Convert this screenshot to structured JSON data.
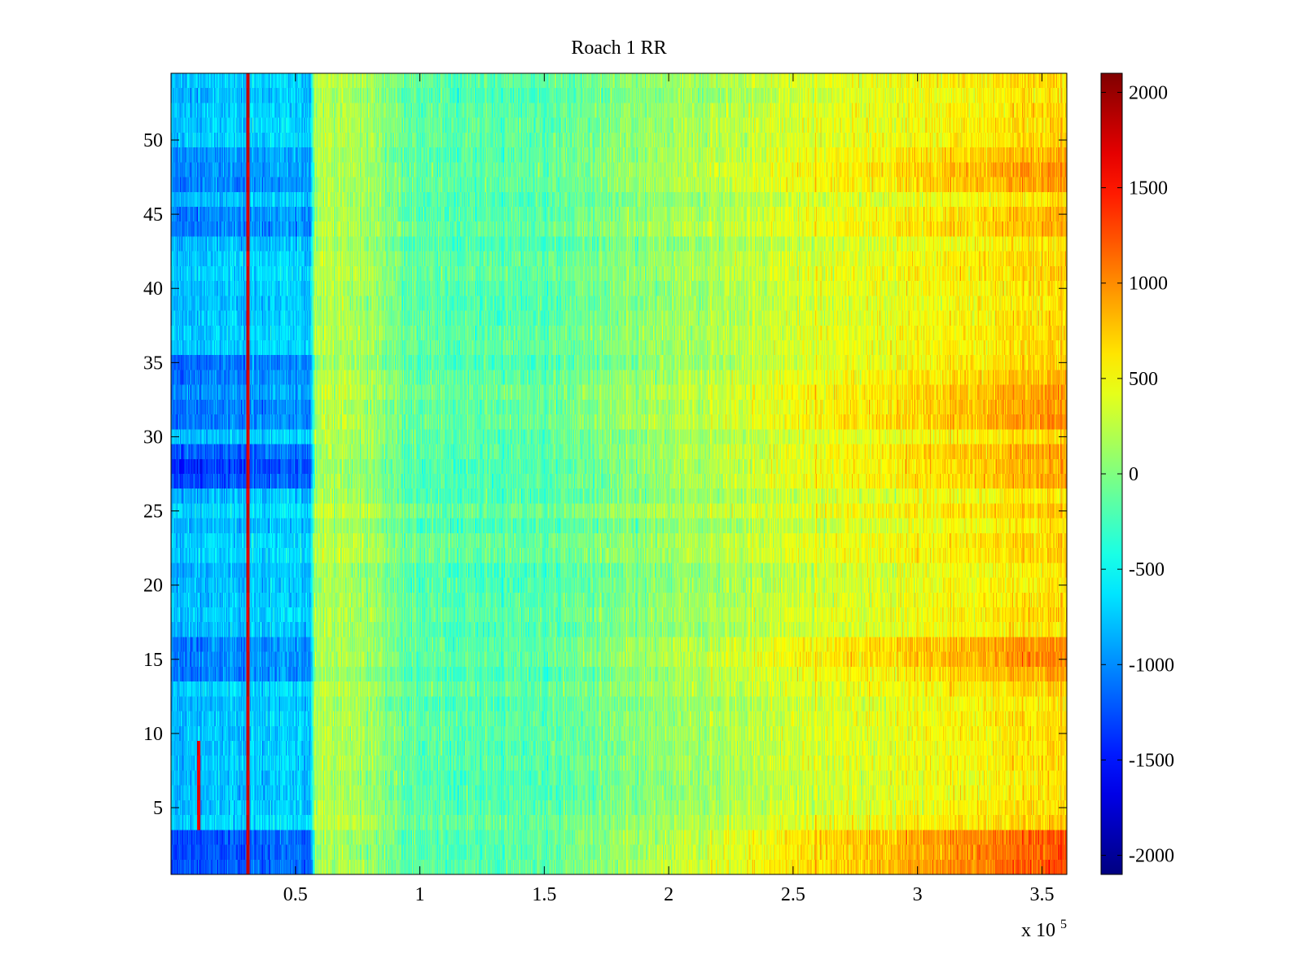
{
  "chart_data": {
    "type": "heatmap",
    "title": "Roach 1 RR",
    "xlabel": "",
    "ylabel": "",
    "x_multiplier_label": {
      "base": "x 10",
      "exponent": "5"
    },
    "xlim": [
      0,
      3.6
    ],
    "ylim": [
      0.5,
      54.5
    ],
    "rows": 54,
    "columns": 1200,
    "x_ticks": [
      {
        "value": 0.5,
        "label": "0.5"
      },
      {
        "value": 1,
        "label": "1"
      },
      {
        "value": 1.5,
        "label": "1.5"
      },
      {
        "value": 2,
        "label": "2"
      },
      {
        "value": 2.5,
        "label": "2.5"
      },
      {
        "value": 3,
        "label": "3"
      },
      {
        "value": 3.5,
        "label": "3.5"
      }
    ],
    "y_ticks": [
      {
        "value": 5,
        "label": "5"
      },
      {
        "value": 10,
        "label": "10"
      },
      {
        "value": 15,
        "label": "15"
      },
      {
        "value": 20,
        "label": "20"
      },
      {
        "value": 25,
        "label": "25"
      },
      {
        "value": 30,
        "label": "30"
      },
      {
        "value": 35,
        "label": "35"
      },
      {
        "value": 40,
        "label": "40"
      },
      {
        "value": 45,
        "label": "45"
      },
      {
        "value": 50,
        "label": "50"
      }
    ],
    "colorbar": {
      "colormap": "jet",
      "range": [
        -2100,
        2100
      ],
      "ticks": [
        {
          "value": 2000,
          "label": "2000"
        },
        {
          "value": 1500,
          "label": "1500"
        },
        {
          "value": 1000,
          "label": "1000"
        },
        {
          "value": 500,
          "label": "500"
        },
        {
          "value": 0,
          "label": "0"
        },
        {
          "value": -500,
          "label": "-500"
        },
        {
          "value": -1000,
          "label": "-1000"
        },
        {
          "value": -1500,
          "label": "-1500"
        },
        {
          "value": -2000,
          "label": "-2000"
        }
      ]
    },
    "column_trend": [
      {
        "x": 0.0,
        "value": -800
      },
      {
        "x": 0.3,
        "value": -700
      },
      {
        "x": 0.56,
        "value": -700
      },
      {
        "x": 0.58,
        "value": 280
      },
      {
        "x": 0.8,
        "value": 150
      },
      {
        "x": 1.0,
        "value": -150
      },
      {
        "x": 1.5,
        "value": -150
      },
      {
        "x": 2.0,
        "value": 100
      },
      {
        "x": 2.5,
        "value": 350
      },
      {
        "x": 3.0,
        "value": 500
      },
      {
        "x": 3.6,
        "value": 700
      }
    ],
    "row_offsets": [
      {
        "row": 1,
        "left": -500,
        "right": 600
      },
      {
        "row": 2,
        "left": -500,
        "right": 600
      },
      {
        "row": 3,
        "left": -500,
        "right": 600
      },
      {
        "row": 14,
        "left": -250,
        "right": 300
      },
      {
        "row": 15,
        "left": -300,
        "right": 350
      },
      {
        "row": 16,
        "left": -300,
        "right": 350
      },
      {
        "row": 27,
        "left": -550,
        "right": 200
      },
      {
        "row": 28,
        "left": -650,
        "right": 200
      },
      {
        "row": 29,
        "left": -500,
        "right": 200
      },
      {
        "row": 31,
        "left": -400,
        "right": 250
      },
      {
        "row": 32,
        "left": -400,
        "right": 250
      },
      {
        "row": 33,
        "left": -350,
        "right": 150
      },
      {
        "row": 34,
        "left": -350,
        "right": 100
      },
      {
        "row": 35,
        "left": -350,
        "right": 100
      },
      {
        "row": 44,
        "left": -400,
        "right": 100
      },
      {
        "row": 45,
        "left": -300,
        "right": 150
      },
      {
        "row": 47,
        "left": -300,
        "right": 250
      },
      {
        "row": 48,
        "left": -250,
        "right": 300
      },
      {
        "row": 49,
        "left": -200,
        "right": 200
      }
    ],
    "annotations": [
      {
        "kind": "vertical-stripe",
        "x": 0.31,
        "value": 1900,
        "rows": [
          1,
          54
        ]
      },
      {
        "kind": "vertical-stripe",
        "x": 0.11,
        "value": 1800,
        "rows": [
          4,
          9
        ]
      }
    ]
  }
}
